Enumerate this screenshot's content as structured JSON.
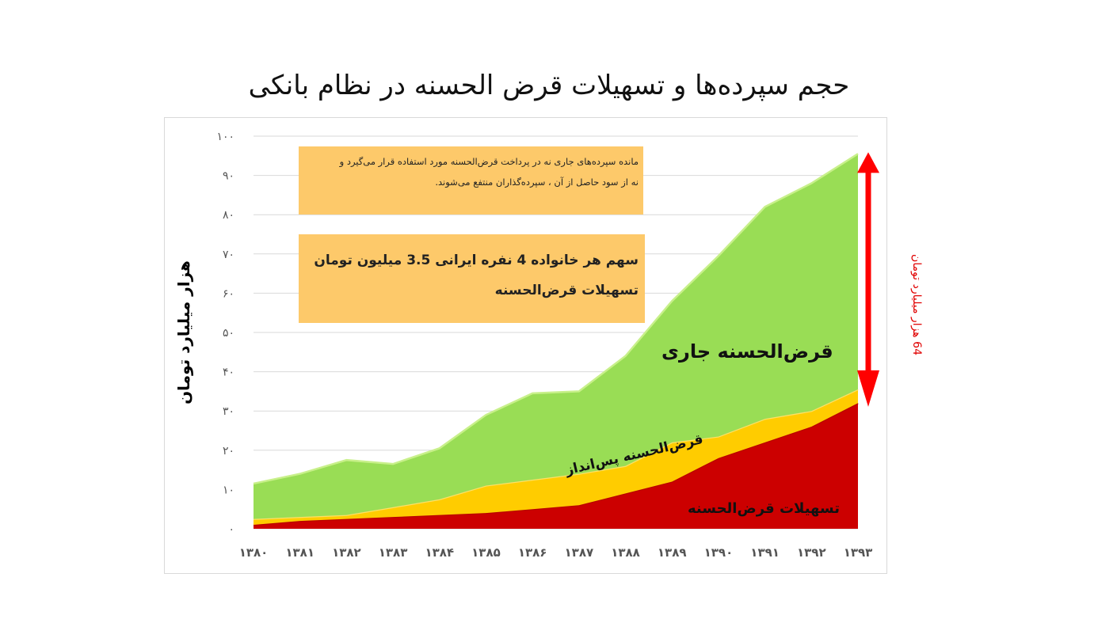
{
  "title": "حجم سپرده‌ها و تسهیلات قرض الحسنه در نظام بانکی",
  "note_box": {
    "line1": "مانده سپرده‌های جاری نه در پرداخت قرض‌الحسنه مورد استفاده قرار می‌گیرد و",
    "line2": "نه  از سود حاصل از آن ، سپرده‌گذاران منتفع می‌شوند."
  },
  "share_box": {
    "line1": "سهم هر خانواده 4 نفره ایرانی 3.5 میلیون تومان",
    "line2": "تسهیلات قرض‌الحسنه"
  },
  "area_labels": {
    "current": "قرض‌الحسنه جاری",
    "saving": "قرض‌الحسنه پس‌انداز",
    "loans": "تسهیلات قرض‌الحسنه"
  },
  "gap_annotation": "64 هزار میلیارد تومان",
  "colors": {
    "loans": "#cc0000",
    "saving": "#ffcc00",
    "current": "#99dd55",
    "arrow": "#ff0000",
    "box": "#fdc96a"
  },
  "chart_data": {
    "type": "area",
    "stacked": true,
    "ylabel": "هزار میلیارد تومان",
    "ylim": [
      0,
      100
    ],
    "yticks": [
      "۰",
      "۱۰",
      "۲۰",
      "۳۰",
      "۴۰",
      "۵۰",
      "۶۰",
      "۷۰",
      "۸۰",
      "۹۰",
      "۱۰۰"
    ],
    "grid": true,
    "categories": [
      "۱۳۸۰",
      "۱۳۸۱",
      "۱۳۸۲",
      "۱۳۸۳",
      "۱۳۸۴",
      "۱۳۸۵",
      "۱۳۸۶",
      "۱۳۸۷",
      "۱۳۸۸",
      "۱۳۸۹",
      "۱۳۹۰",
      "۱۳۹۱",
      "۱۳۹۲",
      "۱۳۹۳"
    ],
    "series": [
      {
        "name": "تسهیلات قرض‌الحسنه",
        "values": [
          1,
          2,
          2.5,
          3,
          3.5,
          4,
          5,
          6,
          9,
          12,
          18,
          22,
          26,
          32
        ]
      },
      {
        "name": "قرض‌الحسنه پس‌انداز",
        "values": [
          1.5,
          1,
          1,
          2.5,
          4,
          7,
          7.5,
          8,
          7,
          10,
          5.5,
          6,
          4,
          3.5
        ]
      },
      {
        "name": "قرض‌الحسنه جاری",
        "values": [
          9,
          11,
          14,
          11,
          13,
          18,
          22,
          21,
          28,
          36,
          46,
          54,
          58,
          60
        ]
      }
    ]
  }
}
